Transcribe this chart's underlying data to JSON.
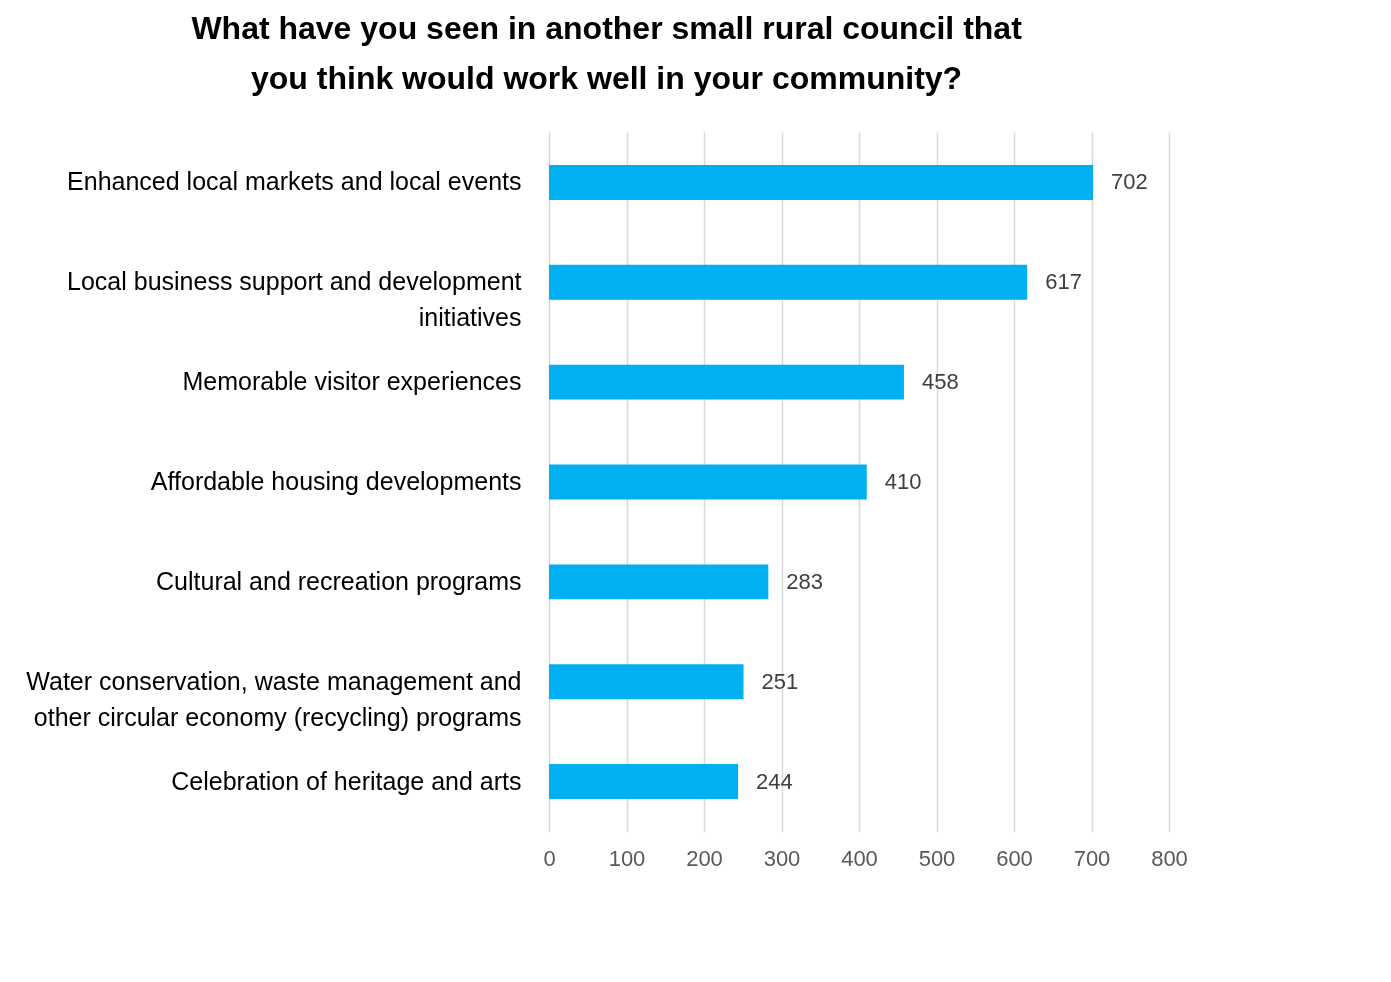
{
  "chart_data": {
    "type": "bar",
    "orientation": "horizontal",
    "title": "What have you seen in another small rural council that you think would work well in your community?",
    "categories": [
      "Enhanced local markets and local events",
      "Local business support and development initiatives",
      "Memorable visitor experiences",
      "Affordable housing developments",
      "Cultural and recreation programs",
      "Water conservation, waste management and other circular economy (recycling) programs",
      "Celebration of heritage and arts"
    ],
    "values": [
      702,
      617,
      458,
      410,
      283,
      251,
      244
    ],
    "color": "#00b0f0",
    "xlim": [
      0,
      800
    ],
    "xticks": [
      0,
      100,
      200,
      300,
      400,
      500,
      600,
      700,
      800
    ],
    "grid": "x",
    "data_labels": true
  }
}
